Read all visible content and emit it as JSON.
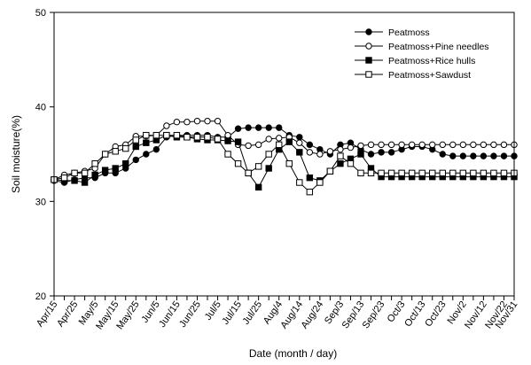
{
  "chart_data": {
    "type": "line",
    "xlabel": "Date (month / day)",
    "ylabel": "Soil moisture(%)",
    "ylim": [
      20,
      50
    ],
    "yticks": [
      "20",
      "30",
      "40",
      "50"
    ],
    "grid": false,
    "legend_position": "top-right",
    "categories": [
      "Apr/15",
      "Apr/20",
      "Apr/25",
      "Apr/30",
      "May/5",
      "May/10",
      "May/15",
      "May/20",
      "May/25",
      "May/30",
      "Jun/5",
      "Jun/10",
      "Jun/15",
      "Jun/20",
      "Jun/25",
      "Jun/30",
      "Jul/5",
      "Jul/10",
      "Jul/15",
      "Jul/20",
      "Jul/25",
      "Jul/30",
      "Aug/4",
      "Aug/9",
      "Aug/14",
      "Aug/19",
      "Aug/24",
      "Aug/29",
      "Sep/3",
      "Sep/8",
      "Sep/13",
      "Sep/18",
      "Sep/23",
      "Sep/28",
      "Oct/3",
      "Oct/8",
      "Oct/13",
      "Oct/18",
      "Oct/23",
      "Oct/28",
      "Nov/2",
      "Nov/7",
      "Nov/12",
      "Nov/17",
      "Nov/22",
      "Nov/27"
    ],
    "x_tick_labels": [
      "Apr/15",
      "Apr/25",
      "May/5",
      "May/15",
      "May/25",
      "Jun/5",
      "Jun/15",
      "Jun/25",
      "Jul/5",
      "Jul/15",
      "Jul/25",
      "Aug/4",
      "Aug/14",
      "Aug/24",
      "Sep/3",
      "Sep/13",
      "Sep/23",
      "Oct/3",
      "Oct/13",
      "Oct/23",
      "Nov/2",
      "Nov/12",
      "Nov/22",
      "Nov/31"
    ],
    "series": [
      {
        "name": "Peatmoss",
        "marker": "filled-circle",
        "values": [
          32.2,
          32.0,
          32.3,
          32.5,
          32.5,
          33.0,
          33.0,
          33.5,
          34.4,
          35.0,
          35.5,
          36.8,
          37.0,
          37.0,
          37.0,
          37.0,
          36.8,
          36.8,
          37.7,
          37.8,
          37.8,
          37.8,
          37.8,
          37.0,
          36.8,
          36.0,
          35.5,
          35.0,
          36.0,
          36.2,
          35.5,
          35.0,
          35.2,
          35.2,
          35.5,
          35.8,
          35.8,
          35.5,
          35.0,
          34.8,
          34.8,
          34.8,
          34.8,
          34.8,
          34.8,
          34.8
        ]
      },
      {
        "name": "Peatmoss+Pine needles",
        "marker": "open-circle",
        "values": [
          32.3,
          32.8,
          33.0,
          33.2,
          33.5,
          35.0,
          35.8,
          36.0,
          36.9,
          36.9,
          37.0,
          38.0,
          38.4,
          38.4,
          38.5,
          38.5,
          38.5,
          37.0,
          36.0,
          35.9,
          36.0,
          36.6,
          36.7,
          36.8,
          36.2,
          35.2,
          35.0,
          35.3,
          35.5,
          35.7,
          35.9,
          36.0,
          36.0,
          36.0,
          36.0,
          36.0,
          36.0,
          36.0,
          36.0,
          36.0,
          36.0,
          36.0,
          36.0,
          36.0,
          36.0,
          36.0
        ]
      },
      {
        "name": "Peatmoss+Rice hulls",
        "marker": "filled-square",
        "values": [
          32.3,
          32.2,
          32.2,
          32.0,
          32.8,
          33.3,
          33.5,
          34.0,
          35.8,
          36.2,
          36.5,
          37.0,
          36.8,
          36.8,
          36.6,
          36.5,
          36.5,
          36.4,
          36.3,
          33.0,
          31.5,
          33.5,
          35.5,
          36.3,
          35.2,
          32.5,
          32.2,
          33.2,
          34.0,
          34.5,
          35.0,
          33.5,
          32.6,
          32.6,
          32.6,
          32.6,
          32.6,
          32.6,
          32.6,
          32.6,
          32.6,
          32.6,
          32.6,
          32.6,
          32.6,
          32.6
        ]
      },
      {
        "name": "Peatmoss+Sawdust",
        "marker": "open-square",
        "values": [
          32.3,
          32.5,
          33.0,
          33.0,
          34.0,
          35.0,
          35.3,
          35.6,
          36.5,
          37.0,
          37.0,
          37.0,
          37.0,
          36.8,
          36.8,
          36.8,
          36.6,
          35.0,
          34.0,
          33.0,
          33.7,
          35.0,
          36.0,
          34.0,
          32.0,
          31.0,
          32.0,
          33.2,
          34.8,
          34.0,
          33.0,
          33.0,
          33.0,
          33.0,
          33.0,
          33.0,
          33.0,
          33.0,
          33.0,
          33.0,
          33.0,
          33.0,
          33.0,
          33.0,
          33.0,
          33.0
        ]
      }
    ]
  }
}
